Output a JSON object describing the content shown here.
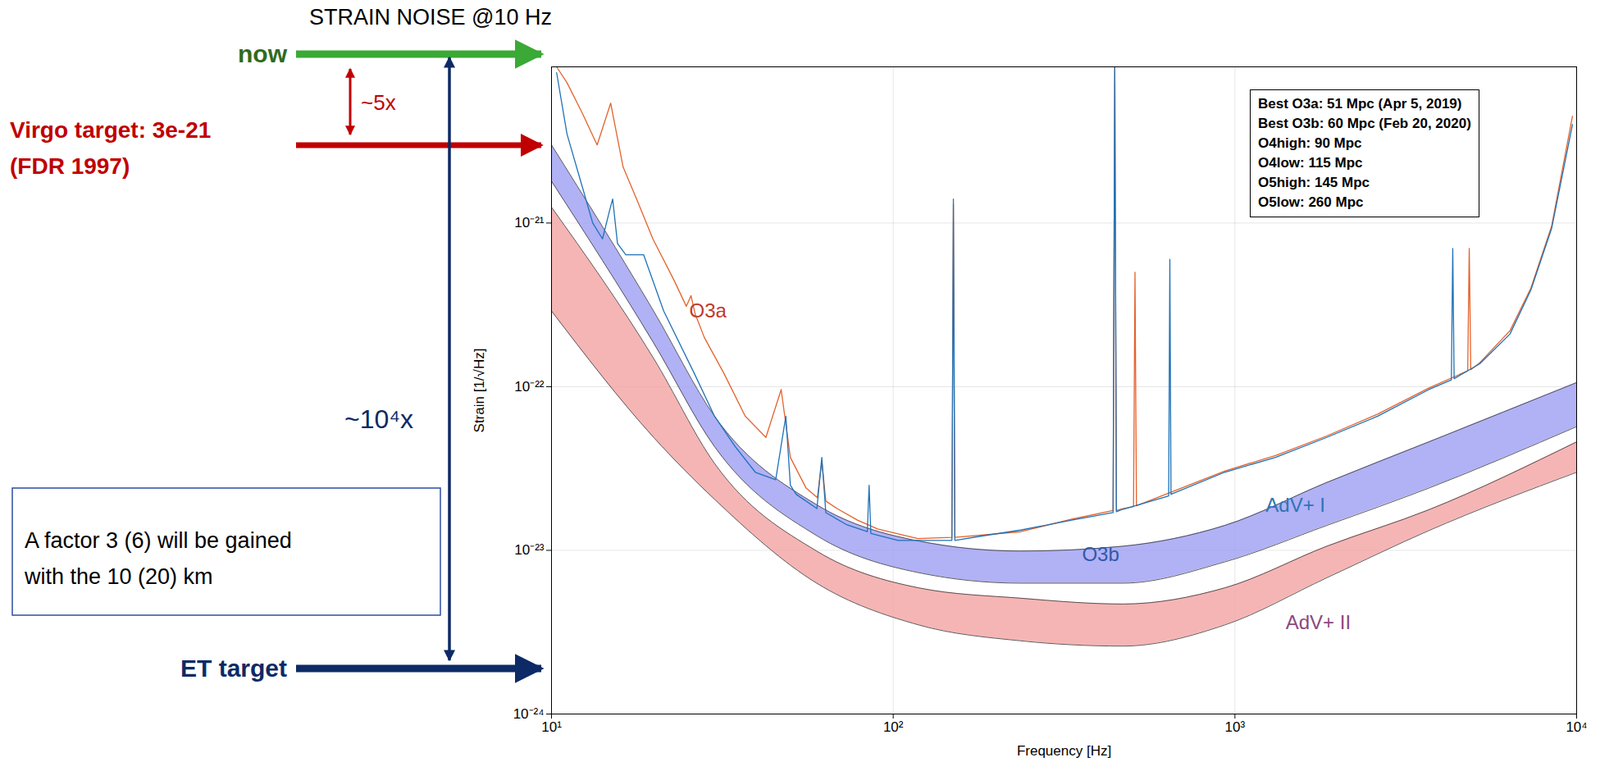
{
  "chart_data": {
    "type": "line",
    "log": true,
    "grid": true,
    "x_label": "Frequency [Hz]",
    "y_label": "Strain [1/√Hz]",
    "xlim": [
      10,
      10000
    ],
    "ylim": [
      1e-24,
      9e-21
    ],
    "xticks": [
      {
        "value": 10,
        "label": "10¹"
      },
      {
        "value": 100,
        "label": "10²"
      },
      {
        "value": 1000,
        "label": "10³"
      },
      {
        "value": 10000,
        "label": "10⁴"
      }
    ],
    "yticks": [
      {
        "value": 1e-24,
        "label": "10⁻²⁴"
      },
      {
        "value": 1e-23,
        "label": "10⁻²³"
      },
      {
        "value": 1e-22,
        "label": "10⁻²²"
      },
      {
        "value": 1e-21,
        "label": "10⁻²¹"
      }
    ],
    "series": [
      {
        "name": "O3a",
        "color": "#e4622c",
        "label_at": [
          25.3,
          2.9e-22
        ],
        "x": [
          10.35,
          11.1,
          12.3,
          13.6,
          14.9,
          16.2,
          17.9,
          19.8,
          22.8,
          24.8,
          25.6,
          26.3,
          28,
          32,
          36.9,
          42.4,
          47,
          50,
          55.6,
          60,
          61.8,
          63.5,
          68.5,
          78.6,
          90,
          118,
          148.5,
          150,
          151.5,
          236,
          333,
          440,
          445,
          450,
          470,
          505,
          510,
          515,
          933,
          1315,
          1856,
          2617,
          3692,
          4800,
          4850,
          4900,
          5207,
          6384,
          7348,
          8453,
          9724
        ],
        "values": [
          9e-21,
          7.2e-21,
          4.7e-21,
          3e-21,
          5.4e-21,
          2.2e-21,
          1.34e-21,
          8e-22,
          4.5e-22,
          3.1e-22,
          3.6e-22,
          2.8e-22,
          2e-22,
          1.2e-22,
          6.6e-23,
          4.9e-23,
          9.6e-23,
          3.7e-23,
          2.4e-23,
          2.1e-23,
          3.5e-23,
          2e-23,
          1.8e-23,
          1.53e-23,
          1.35e-23,
          1.18e-23,
          1.2e-23,
          1.3e-21,
          1.2e-23,
          1.3e-23,
          1.55e-23,
          1.75e-23,
          9e-21,
          1.75e-23,
          1.8e-23,
          1.85e-23,
          5e-22,
          1.87e-23,
          3.05e-23,
          3.8e-23,
          5e-23,
          6.8e-23,
          9.8e-23,
          1.25e-22,
          7e-22,
          1.27e-22,
          1.4e-22,
          2.2e-22,
          4e-22,
          9.6e-22,
          4.5e-21
        ]
      },
      {
        "name": "O3b",
        "color": "#1f72b8",
        "label_at": [
          357,
          9.4e-24
        ],
        "x": [
          10.35,
          11.1,
          12.3,
          13.2,
          14.1,
          14.8,
          15.1,
          15.6,
          16.5,
          18.6,
          21.3,
          26.2,
          30,
          34.5,
          39.5,
          45.3,
          48.5,
          50,
          52,
          59.8,
          61.8,
          63.5,
          73.3,
          84,
          85,
          86,
          103.3,
          136,
          148.5,
          150,
          151.5,
          180,
          236,
          333,
          440,
          445,
          450,
          469,
          640,
          645,
          650,
          933,
          1315,
          1856,
          2617,
          3692,
          4300,
          4340,
          4380,
          5207,
          6384,
          7348,
          8453,
          9724
        ],
        "values": [
          8.3e-21,
          3.5e-21,
          1.67e-21,
          1e-21,
          8e-22,
          1.2e-21,
          1.4e-21,
          7.5e-22,
          6.4e-22,
          6.4e-22,
          2.9e-22,
          1.2e-22,
          6.6e-23,
          4.3e-23,
          3e-23,
          2.7e-23,
          6.6e-23,
          2.5e-23,
          2.2e-23,
          1.8e-23,
          3.7e-23,
          1.7e-23,
          1.43e-23,
          1.3e-23,
          2.5e-23,
          1.27e-23,
          1.15e-23,
          1.15e-23,
          1.15e-23,
          1.4e-21,
          1.15e-23,
          1.22e-23,
          1.33e-23,
          1.53e-23,
          1.7e-23,
          9e-21,
          1.72e-23,
          1.78e-23,
          2.15e-23,
          6e-22,
          2.2e-23,
          3e-23,
          3.7e-23,
          4.9e-23,
          6.6e-23,
          9.6e-23,
          1.1e-22,
          7e-22,
          1.12e-22,
          1.38e-22,
          2.1e-22,
          3.9e-22,
          9.3e-22,
          4e-21
        ]
      }
    ],
    "bands": [
      {
        "name": "AdV+ I",
        "color": "#9e9ef2",
        "label_at": [
          1230,
          1.87e-23
        ],
        "x": [
          10,
          19.9,
          30,
          59.7,
          118.8,
          236,
          470,
          934,
          1858,
          3692,
          10000
        ],
        "upper": [
          3e-21,
          2.9e-22,
          6.6e-23,
          1.9e-23,
          1.14e-23,
          9.9e-24,
          1.06e-23,
          1.42e-23,
          2.6e-23,
          4.6e-23,
          1.06e-22
        ],
        "lower": [
          1.8e-21,
          1.85e-22,
          4.3e-23,
          1.23e-23,
          7.3e-24,
          6.3e-24,
          6.3e-24,
          8.5e-24,
          1.42e-23,
          2.4e-23,
          5.7e-23
        ]
      },
      {
        "name": "AdV+ II",
        "color": "#f4a3a3",
        "label_at": [
          1408,
          3.6e-24
        ],
        "x": [
          10,
          19.9,
          30,
          59.7,
          118.8,
          236,
          470,
          934,
          1858,
          3692,
          10000
        ],
        "upper": [
          1.25e-21,
          1.49e-22,
          3.4e-23,
          9.9e-24,
          5.9e-24,
          5.1e-24,
          4.7e-24,
          5.9e-24,
          1.06e-23,
          1.77e-23,
          4.6e-23
        ],
        "lower": [
          2.9e-22,
          4.9e-23,
          2.05e-23,
          6.3e-24,
          3.5e-24,
          2.8e-24,
          2.6e-24,
          3.5e-24,
          6.8e-24,
          1.32e-23,
          3e-23
        ]
      }
    ],
    "info_box": [
      "Best O3a: 51 Mpc (Apr 5, 2019)",
      "Best O3b: 60 Mpc (Feb 20, 2020)",
      "O4high: 90 Mpc",
      "O4low: 115 Mpc",
      "O5high: 145 Mpc",
      "O5low: 260 Mpc"
    ],
    "side_annotations": {
      "title": "STRAIN NOISE @10 Hz",
      "now": "now",
      "virgo_target": [
        "Virgo target: 3e-21",
        "(FDR 1997)"
      ],
      "ratio_small": "~5x",
      "ratio_large": "~10⁴x",
      "note": [
        "A factor 3 (6) will be gained",
        "with the 10 (20) km"
      ],
      "et_target": "ET target"
    }
  }
}
